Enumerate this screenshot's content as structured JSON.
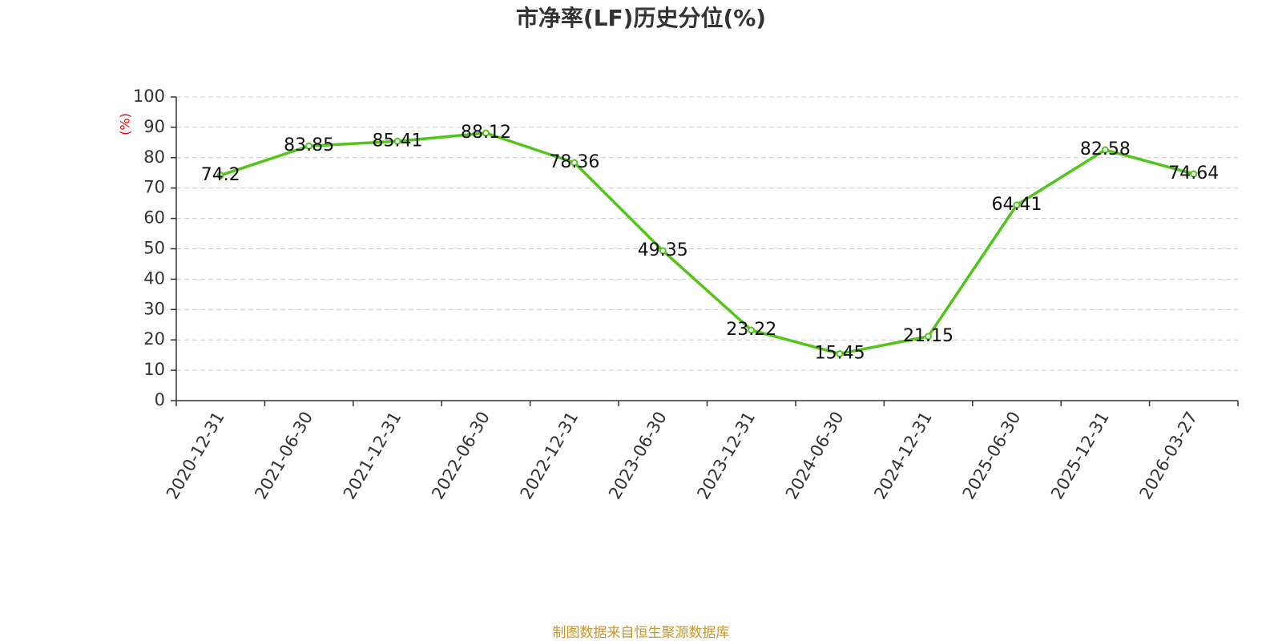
{
  "chart_data": {
    "type": "line",
    "title": "市净率(LF)历史分位(%)",
    "y_label": "(%)",
    "source": "制图数据来自恒生聚源数据库",
    "categories": [
      "2020-12-31",
      "2021-06-30",
      "2021-12-31",
      "2022-06-30",
      "2022-12-31",
      "2023-06-30",
      "2023-12-31",
      "2024-06-30",
      "2024-12-31",
      "2025-06-30",
      "2025-12-31",
      "2026-03-27"
    ],
    "values": [
      74.2,
      83.85,
      85.41,
      88.12,
      78.36,
      49.35,
      23.22,
      15.45,
      21.15,
      64.41,
      82.58,
      74.64
    ],
    "color": "#52c41a",
    "ylim": [
      0,
      100
    ],
    "yticks": [
      0,
      10,
      20,
      30,
      40,
      50,
      60,
      70,
      80,
      90,
      100
    ],
    "grid": true
  }
}
